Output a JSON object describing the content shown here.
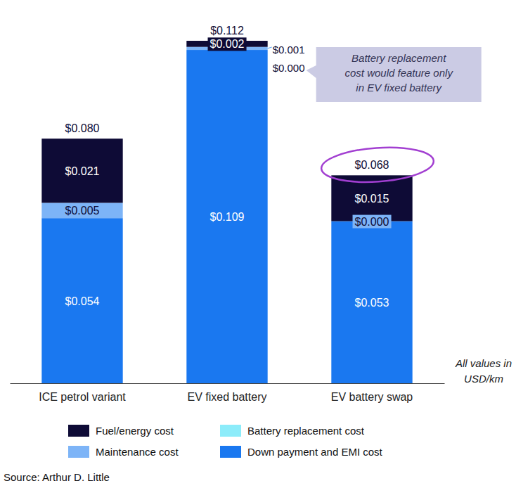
{
  "chart_data": {
    "type": "bar",
    "stacked": true,
    "data_labels": true,
    "tick_labels": "x",
    "legend": "bottom",
    "categories": [
      "ICE petrol variant",
      "EV fixed battery",
      "EV battery swap"
    ],
    "ylim": [
      0,
      0.112
    ],
    "series": [
      {
        "name": "Down payment and EMI cost",
        "color": "#1a78f0",
        "values": [
          0.054,
          0.109,
          0.053
        ],
        "value_labels": [
          "$0.054",
          "$0.109",
          "$0.053"
        ]
      },
      {
        "name": "Maintenance cost",
        "color": "#7db4f7",
        "values": [
          0.005,
          0.001,
          0.0
        ],
        "value_labels": [
          "$0.005",
          "$0.001",
          "$0.000"
        ]
      },
      {
        "name": "Battery replacement cost",
        "color": "#8cecfa",
        "values": [
          null,
          0.0,
          null
        ],
        "value_labels": [
          null,
          "$0.000",
          null
        ]
      },
      {
        "name": "Fuel/energy cost",
        "color": "#0e0b36",
        "values": [
          0.021,
          0.002,
          0.015
        ],
        "value_labels": [
          "$0.021",
          "$0.002",
          "$0.015"
        ]
      }
    ],
    "totals": [
      0.08,
      0.112,
      0.068
    ],
    "total_labels": [
      "$0.080",
      "$0.112",
      "$0.068"
    ],
    "annotations": [
      {
        "lines": [
          "Battery replacement",
          "cost would feature only",
          "in EV fixed battery"
        ]
      }
    ],
    "unit_note": [
      "All values in",
      "USD/km"
    ],
    "source": "Source: Arthur D. Little"
  }
}
